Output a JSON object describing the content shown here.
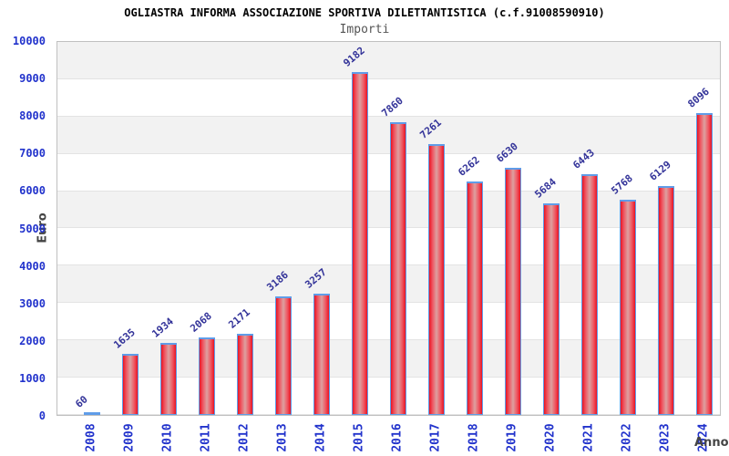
{
  "chart_data": {
    "type": "bar",
    "title": "OGLIASTRA INFORMA ASSOCIAZIONE SPORTIVA DILETTANTISTICA (c.f.91008590910)",
    "subtitle": "Importi",
    "ylabel": "Euro",
    "xlabel": "Anno",
    "categories": [
      "2008",
      "2009",
      "2010",
      "2011",
      "2012",
      "2013",
      "2014",
      "2015",
      "2016",
      "2017",
      "2018",
      "2019",
      "2020",
      "2021",
      "2022",
      "2023",
      "2024"
    ],
    "values": [
      60,
      1635,
      1934,
      2068,
      2171,
      3186,
      3257,
      9182,
      7860,
      7261,
      6262,
      6630,
      5684,
      6443,
      5768,
      6129,
      8096
    ],
    "ylim": [
      0,
      10000
    ],
    "ytick_step": 1000,
    "yticks": [
      0,
      1000,
      2000,
      3000,
      4000,
      5000,
      6000,
      7000,
      8000,
      9000,
      10000
    ],
    "grid": "horizontal-bands-alternating",
    "legend_position": "none",
    "colors": {
      "bar_fill_edge": "#e81423",
      "bar_fill_inner": "#ef5560",
      "bar_fill_center": "#dda0a0",
      "bar_border": "#5f9ce8",
      "value_label": "#333399",
      "tick_label": "#2233cc",
      "band_alt": "#f2f2f2",
      "gridline": "#e3e3e3",
      "plot_border": "#c0c0c0",
      "title": "#000000",
      "subtitle": "#555555",
      "axis_title": "#444444",
      "background": "#ffffff"
    }
  }
}
